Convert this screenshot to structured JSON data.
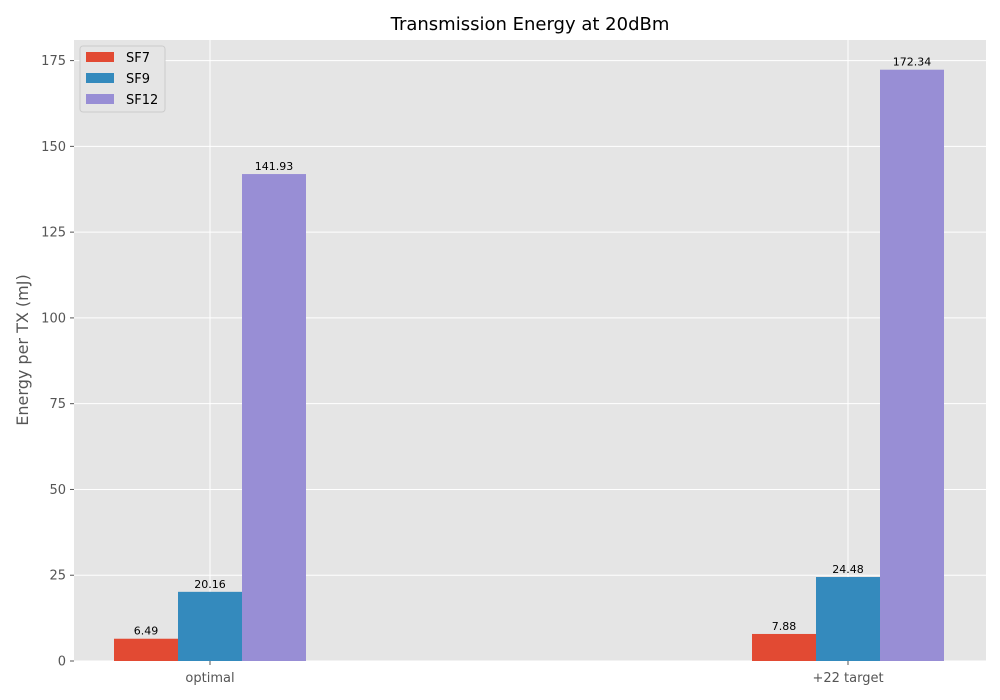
{
  "chart_data": {
    "type": "bar",
    "title": "Transmission Energy at 20dBm",
    "xlabel": "",
    "ylabel": "Energy per TX (mJ)",
    "categories": [
      "optimal",
      "+22 target"
    ],
    "series": [
      {
        "name": "SF7",
        "color": "#E24A33",
        "values": [
          6.49,
          7.88
        ]
      },
      {
        "name": "SF9",
        "color": "#348ABD",
        "values": [
          20.16,
          24.48
        ]
      },
      {
        "name": "SF12",
        "color": "#988ED5",
        "values": [
          141.93,
          172.34
        ]
      }
    ],
    "value_labels": [
      [
        "6.49",
        "7.88"
      ],
      [
        "20.16",
        "24.48"
      ],
      [
        "141.93",
        "172.34"
      ]
    ],
    "ylim": [
      0,
      181
    ],
    "yticks": [
      0,
      25,
      50,
      75,
      100,
      125,
      150,
      175
    ],
    "ytick_labels": [
      "0",
      "25",
      "50",
      "75",
      "100",
      "125",
      "150",
      "175"
    ],
    "grid": true,
    "legend_position": "top-left",
    "style": {
      "plot_background": "#E5E5E5",
      "grid_color": "#FFFFFF"
    }
  }
}
